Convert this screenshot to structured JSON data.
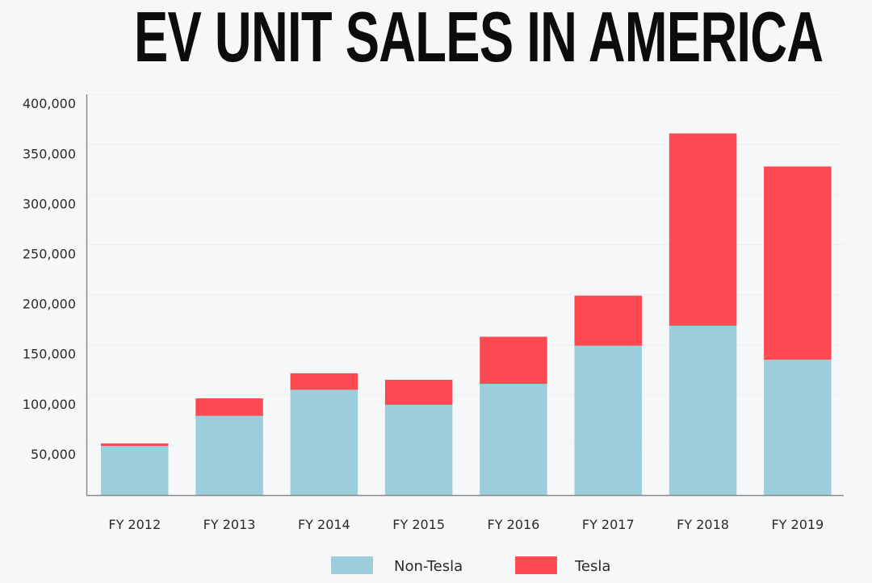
{
  "chart_data": {
    "type": "bar",
    "stacked": true,
    "title": "EV UNIT SALES IN AMERICA",
    "xlabel": "",
    "ylabel": "",
    "categories": [
      "FY 2012",
      "FY 2013",
      "FY 2014",
      "FY 2015",
      "FY 2016",
      "FY 2017",
      "FY 2018",
      "FY 2019"
    ],
    "series": [
      {
        "name": "Non-Tesla",
        "color": "#9ccddb",
        "values": [
          58000,
          88000,
          114000,
          99000,
          120000,
          158000,
          178000,
          144000
        ]
      },
      {
        "name": "Tesla",
        "color": "#fd4a52",
        "values": [
          2500,
          17500,
          16500,
          25000,
          47000,
          50000,
          192000,
          193000
        ]
      }
    ],
    "yticks": [
      50000,
      100000,
      150000,
      200000,
      250000,
      300000,
      350000,
      400000
    ],
    "ytick_labels": [
      "50,000",
      "100,000",
      "150,000",
      "200,000",
      "250,000",
      "300,000",
      "350,000",
      "400,000"
    ],
    "ylim": [
      0,
      400000
    ],
    "grid": "horizontal-faint",
    "legend": "bottom-center"
  }
}
